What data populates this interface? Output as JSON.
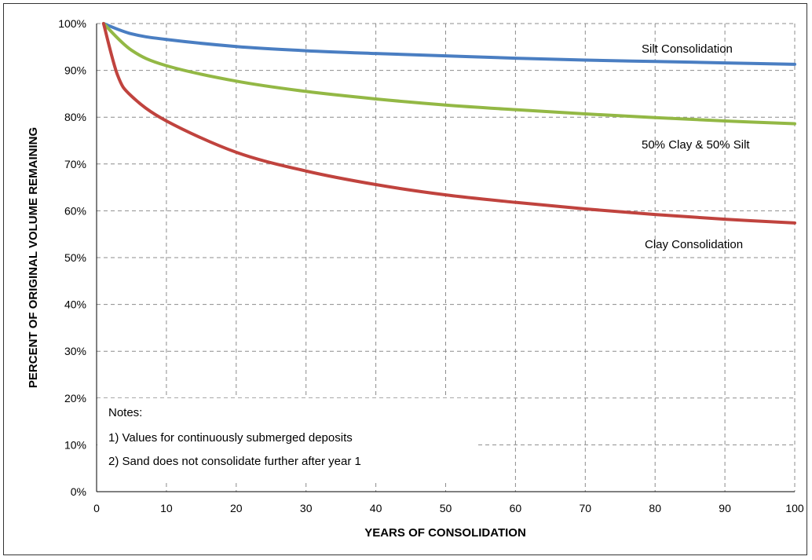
{
  "chart_data": {
    "type": "line",
    "xlabel": "YEARS OF CONSOLIDATION",
    "ylabel": "PERCENT OF ORIGINAL VOLUME REMAINING",
    "xlim": [
      0,
      100
    ],
    "ylim": [
      0,
      100
    ],
    "x_ticks": [
      0,
      10,
      20,
      30,
      40,
      50,
      60,
      70,
      80,
      90,
      100
    ],
    "x_tick_labels": [
      "0",
      "10",
      "20",
      "30",
      "40",
      "50",
      "60",
      "70",
      "80",
      "90",
      "100"
    ],
    "y_ticks": [
      0,
      10,
      20,
      30,
      40,
      50,
      60,
      70,
      80,
      90,
      100
    ],
    "y_tick_labels": [
      "0%",
      "10%",
      "20%",
      "30%",
      "40%",
      "50%",
      "60%",
      "70%",
      "80%",
      "90%",
      "100%"
    ],
    "grid": true,
    "series": [
      {
        "name": "Silt Consolidation",
        "color": "#4a7ec2",
        "x": [
          1,
          5,
          10,
          20,
          30,
          40,
          50,
          60,
          70,
          80,
          90,
          100
        ],
        "y": [
          100,
          97.8,
          96.6,
          95.1,
          94.2,
          93.6,
          93.1,
          92.6,
          92.2,
          91.9,
          91.6,
          91.3
        ]
      },
      {
        "name": "50% Clay & 50% Silt",
        "color": "#93b845",
        "x": [
          1,
          5,
          10,
          20,
          30,
          40,
          50,
          60,
          70,
          80,
          90,
          100
        ],
        "y": [
          100,
          94.3,
          91.0,
          87.7,
          85.5,
          83.9,
          82.6,
          81.6,
          80.7,
          79.9,
          79.2,
          78.6
        ]
      },
      {
        "name": "Clay Consolidation",
        "color": "#c0433e",
        "x": [
          1,
          3,
          5,
          10,
          20,
          30,
          40,
          50,
          60,
          70,
          80,
          90,
          100
        ],
        "y": [
          100,
          89.0,
          84.5,
          79.2,
          72.5,
          68.5,
          65.6,
          63.4,
          61.8,
          60.4,
          59.2,
          58.2,
          57.4
        ]
      }
    ],
    "notes": [
      "Notes:",
      "1) Values for continuously submerged deposits",
      "2) Sand does not consolidate further after year 1"
    ]
  }
}
